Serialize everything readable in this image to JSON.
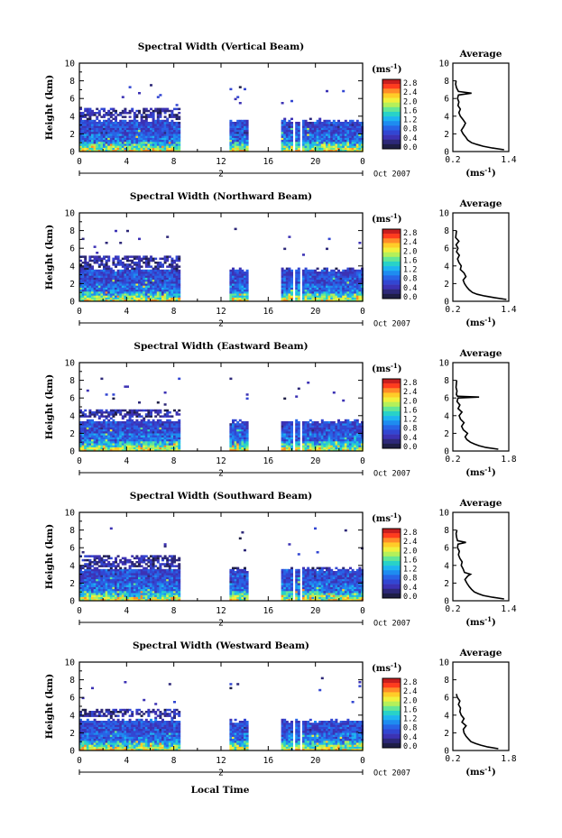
{
  "figure": {
    "xlabel": "Local Time",
    "date_label": "Oct 2007",
    "day_marker": "2",
    "colorbar_unit": "(ms",
    "colorbar_unit_exp": "-1",
    "colorbar_unit_close": ")",
    "colorbar_ticks": [
      "2.8",
      "2.4",
      "2.0",
      "1.6",
      "1.2",
      "0.8",
      "0.4",
      "0.0"
    ],
    "colorbar_colors": [
      "#c81e1e",
      "#ff3c1e",
      "#ff8c28",
      "#ffcc28",
      "#f0f03c",
      "#b4f05a",
      "#64e696",
      "#28d2c8",
      "#1eb4f0",
      "#1e8cf0",
      "#2864e6",
      "#3246d2",
      "#3c32b4",
      "#2d2878",
      "#1e1e46"
    ]
  },
  "chart_data": [
    {
      "type": "heatmap",
      "title": "Spectral Width (Vertical Beam)",
      "ylabel": "Height (km)",
      "xlim": [
        0,
        24
      ],
      "ylim": [
        0,
        10
      ],
      "x_ticks": [
        "0",
        "4",
        "8",
        "12",
        "16",
        "20",
        "0"
      ],
      "y_ticks": [
        "0",
        "2",
        "4",
        "6",
        "8",
        "10"
      ],
      "data_gaps_hours": [
        [
          8.4,
          12.6
        ],
        [
          14.2,
          16.9
        ],
        [
          18.0,
          18.2
        ],
        [
          18.5,
          18.7
        ]
      ],
      "echo_top_km": {
        "day_side": 4.8,
        "night_side": 3.5
      },
      "average_profile": {
        "title": "Average",
        "xlabel_unit": "(ms",
        "xlabel_exp": "-1",
        "xlabel_close": ")",
        "xlim": [
          0.2,
          1.4
        ],
        "x_ticks": [
          "0.2",
          "1.4"
        ],
        "ylim": [
          0,
          10
        ],
        "y_ticks": [
          "0",
          "2",
          "4",
          "6",
          "8",
          "10"
        ],
        "height_km": [
          0.2,
          0.4,
          0.6,
          0.8,
          1.0,
          1.3,
          1.6,
          2.0,
          2.4,
          2.8,
          3.2,
          3.6,
          4.0,
          4.4,
          4.8,
          5.2,
          5.6,
          6.0,
          6.4,
          6.6,
          6.8,
          7.2,
          7.6,
          8.0
        ],
        "width_ms": [
          1.3,
          1.05,
          0.85,
          0.72,
          0.6,
          0.52,
          0.48,
          0.42,
          0.38,
          0.43,
          0.47,
          0.42,
          0.36,
          0.33,
          0.36,
          0.31,
          0.33,
          0.3,
          0.32,
          0.6,
          0.32,
          0.28,
          0.26,
          0.27
        ]
      }
    },
    {
      "type": "heatmap",
      "title": "Spectral Width (Northward Beam)",
      "ylabel": "Height (km)",
      "xlim": [
        0,
        24
      ],
      "ylim": [
        0,
        10
      ],
      "x_ticks": [
        "0",
        "4",
        "8",
        "12",
        "16",
        "20",
        "0"
      ],
      "y_ticks": [
        "0",
        "2",
        "4",
        "6",
        "8",
        "10"
      ],
      "data_gaps_hours": [
        [
          8.4,
          12.6
        ],
        [
          14.2,
          16.9
        ],
        [
          18.0,
          18.2
        ],
        [
          18.5,
          18.7
        ]
      ],
      "echo_top_km": {
        "day_side": 5.0,
        "night_side": 3.6
      },
      "average_profile": {
        "title": "Average",
        "xlabel_unit": "(ms",
        "xlabel_exp": "-1",
        "xlabel_close": ")",
        "xlim": [
          0.2,
          1.4
        ],
        "x_ticks": [
          "0.2",
          "1.4"
        ],
        "ylim": [
          0,
          10
        ],
        "y_ticks": [
          "0",
          "2",
          "4",
          "6",
          "8",
          "10"
        ],
        "height_km": [
          0.2,
          0.4,
          0.6,
          0.8,
          1.0,
          1.3,
          1.6,
          2.0,
          2.4,
          2.8,
          3.2,
          3.6,
          4.0,
          4.4,
          4.8,
          5.2,
          5.6,
          6.0,
          6.4,
          6.8,
          7.2,
          7.6,
          8.0
        ],
        "width_ms": [
          1.35,
          1.1,
          0.88,
          0.72,
          0.62,
          0.55,
          0.5,
          0.45,
          0.42,
          0.48,
          0.44,
          0.36,
          0.38,
          0.33,
          0.3,
          0.34,
          0.28,
          0.31,
          0.27,
          0.33,
          0.26,
          0.27,
          0.28
        ]
      }
    },
    {
      "type": "heatmap",
      "title": "Spectral Width (Eastward Beam)",
      "ylabel": "Height (km)",
      "xlim": [
        0,
        24
      ],
      "ylim": [
        0,
        10
      ],
      "x_ticks": [
        "0",
        "4",
        "8",
        "12",
        "16",
        "20",
        "0"
      ],
      "y_ticks": [
        "0",
        "2",
        "4",
        "6",
        "8",
        "10"
      ],
      "data_gaps_hours": [
        [
          8.4,
          12.6
        ],
        [
          14.2,
          16.9
        ],
        [
          18.0,
          18.2
        ],
        [
          18.5,
          18.7
        ]
      ],
      "echo_top_km": {
        "day_side": 4.6,
        "night_side": 3.4
      },
      "average_profile": {
        "title": "Average",
        "xlabel_unit": "(ms",
        "xlabel_exp": "-1",
        "xlabel_close": ")",
        "xlim": [
          0.2,
          1.8
        ],
        "x_ticks": [
          "0.2",
          "1.8"
        ],
        "ylim": [
          0,
          10
        ],
        "y_ticks": [
          "0",
          "2",
          "4",
          "6",
          "8",
          "10"
        ],
        "height_km": [
          0.2,
          0.4,
          0.6,
          0.8,
          1.0,
          1.3,
          1.6,
          2.0,
          2.4,
          2.8,
          3.2,
          3.6,
          4.0,
          4.4,
          4.8,
          5.2,
          5.6,
          6.0,
          6.1,
          6.2,
          6.4,
          6.8,
          7.2,
          7.6,
          8.0
        ],
        "width_ms": [
          1.5,
          1.15,
          0.95,
          0.82,
          0.7,
          0.6,
          0.55,
          0.62,
          0.5,
          0.45,
          0.52,
          0.42,
          0.38,
          0.46,
          0.35,
          0.4,
          0.32,
          0.35,
          0.95,
          0.33,
          0.3,
          0.32,
          0.29,
          0.3,
          0.31
        ]
      }
    },
    {
      "type": "heatmap",
      "title": "Spectral Width (Southward Beam)",
      "ylabel": "Height (km)",
      "xlim": [
        0,
        24
      ],
      "ylim": [
        0,
        10
      ],
      "x_ticks": [
        "0",
        "4",
        "8",
        "12",
        "16",
        "20",
        "0"
      ],
      "y_ticks": [
        "0",
        "2",
        "4",
        "6",
        "8",
        "10"
      ],
      "data_gaps_hours": [
        [
          8.4,
          12.6
        ],
        [
          14.2,
          16.9
        ],
        [
          18.0,
          18.2
        ],
        [
          18.5,
          18.7
        ]
      ],
      "echo_top_km": {
        "day_side": 5.0,
        "night_side": 3.6
      },
      "average_profile": {
        "title": "Average",
        "xlabel_unit": "(ms",
        "xlabel_exp": "-1",
        "xlabel_close": ")",
        "xlim": [
          0.2,
          1.4
        ],
        "x_ticks": [
          "0.2",
          "1.4"
        ],
        "ylim": [
          0,
          10
        ],
        "y_ticks": [
          "0",
          "2",
          "4",
          "6",
          "8",
          "10"
        ],
        "height_km": [
          0.2,
          0.4,
          0.6,
          0.8,
          1.0,
          1.3,
          1.6,
          2.0,
          2.4,
          2.8,
          3.0,
          3.2,
          3.6,
          4.0,
          4.4,
          4.8,
          5.2,
          5.6,
          6.0,
          6.4,
          6.6,
          6.8,
          7.2,
          7.6,
          8.0
        ],
        "width_ms": [
          1.3,
          1.05,
          0.85,
          0.75,
          0.66,
          0.6,
          0.55,
          0.5,
          0.46,
          0.52,
          0.58,
          0.45,
          0.42,
          0.38,
          0.4,
          0.35,
          0.32,
          0.34,
          0.3,
          0.31,
          0.48,
          0.3,
          0.28,
          0.27,
          0.29
        ]
      }
    },
    {
      "type": "heatmap",
      "title": "Spectral Width (Westward Beam)",
      "ylabel": "Height (km)",
      "xlim": [
        0,
        24
      ],
      "ylim": [
        0,
        10
      ],
      "x_ticks": [
        "0",
        "4",
        "8",
        "12",
        "16",
        "20",
        "0"
      ],
      "y_ticks": [
        "0",
        "2",
        "4",
        "6",
        "8",
        "10"
      ],
      "data_gaps_hours": [
        [
          8.4,
          12.6
        ],
        [
          14.2,
          16.9
        ],
        [
          18.0,
          18.2
        ],
        [
          18.5,
          18.7
        ]
      ],
      "echo_top_km": {
        "day_side": 4.6,
        "night_side": 3.4
      },
      "average_profile": {
        "title": "Average",
        "xlabel_unit": "(ms",
        "xlabel_exp": "-1",
        "xlabel_close": ")",
        "xlim": [
          0.2,
          1.8
        ],
        "x_ticks": [
          "0.2",
          "1.8"
        ],
        "ylim": [
          0,
          10
        ],
        "y_ticks": [
          "0",
          "2",
          "4",
          "6",
          "8",
          "10"
        ],
        "height_km": [
          0.2,
          0.4,
          0.6,
          0.8,
          1.0,
          1.3,
          1.6,
          2.0,
          2.4,
          2.8,
          3.2,
          3.6,
          4.0,
          4.4,
          4.8,
          5.2,
          5.6,
          6.0,
          6.4
        ],
        "width_ms": [
          1.5,
          1.2,
          1.0,
          0.85,
          0.72,
          0.65,
          0.58,
          0.52,
          0.5,
          0.58,
          0.46,
          0.52,
          0.44,
          0.4,
          0.42,
          0.36,
          0.4,
          0.33,
          0.3
        ]
      }
    }
  ]
}
